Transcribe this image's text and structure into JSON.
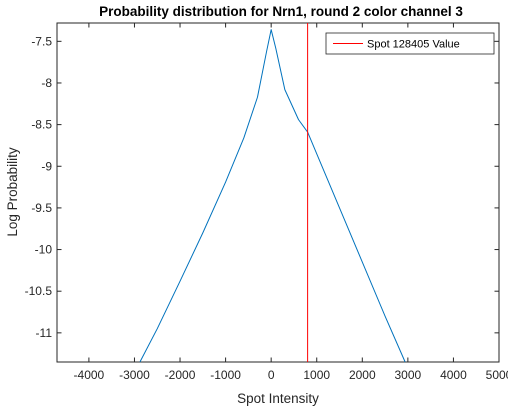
{
  "chart_data": {
    "type": "line",
    "title": "Probability distribution for Nrn1, round 2 color channel 3",
    "xlabel": "Spot Intensity",
    "ylabel": "Log Probability",
    "xlim": [
      -4700,
      5000
    ],
    "ylim": [
      -11.35,
      -7.28
    ],
    "xticks": [
      -4000,
      -3000,
      -2000,
      -1000,
      0,
      1000,
      2000,
      3000,
      4000,
      5000
    ],
    "xtick_labels": [
      "-4000",
      "-3000",
      "-2000",
      "-1000",
      "0",
      "1000",
      "2000",
      "3000",
      "4000",
      "5000"
    ],
    "yticks": [
      -7.5,
      -8,
      -8.5,
      -9,
      -9.5,
      -10,
      -10.5,
      -11
    ],
    "ytick_labels": [
      "-7.5",
      "-8",
      "-8.5",
      "-9",
      "-9.5",
      "-10",
      "-10.5",
      "-11"
    ],
    "grid": false,
    "legend_position": "top-right",
    "series": [
      {
        "color": "#0072bd",
        "x": [
          -2880,
          -2500,
          -2000,
          -1500,
          -1000,
          -600,
          -300,
          -100,
          0,
          100,
          300,
          600,
          800,
          1000,
          1500,
          2000,
          2500,
          2940
        ],
        "y": [
          -11.35,
          -10.95,
          -10.38,
          -9.8,
          -9.19,
          -8.66,
          -8.17,
          -7.62,
          -7.36,
          -7.58,
          -8.08,
          -8.44,
          -8.59,
          -8.85,
          -9.5,
          -10.15,
          -10.8,
          -11.35
        ]
      }
    ],
    "vertical_lines": [
      {
        "name": "Spot 128405 Value",
        "x": 800,
        "color": "#ff0000"
      }
    ]
  }
}
